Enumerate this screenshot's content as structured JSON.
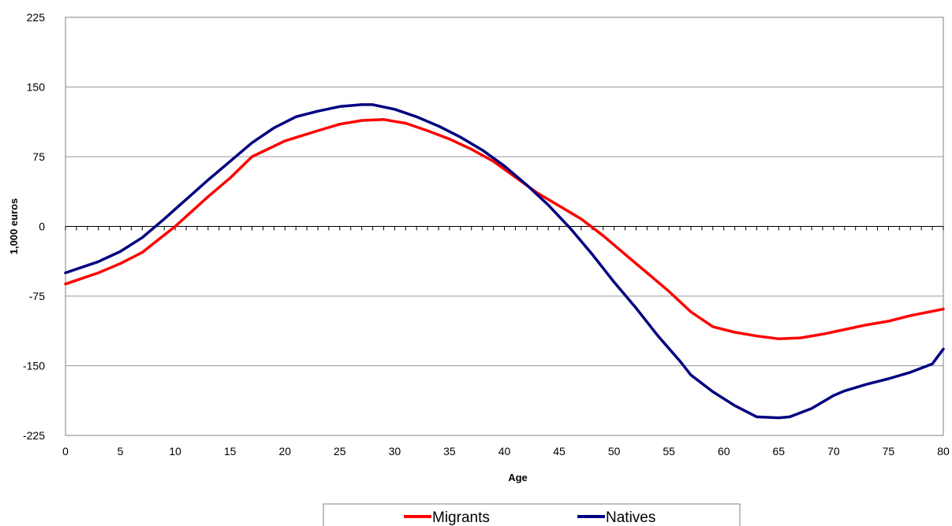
{
  "chart_data": {
    "type": "line",
    "title": "",
    "xlabel": "Age",
    "ylabel": "1,000 euros",
    "xlim": [
      0,
      80
    ],
    "ylim": [
      -225,
      225
    ],
    "xticks": [
      0,
      5,
      10,
      15,
      20,
      25,
      30,
      35,
      40,
      45,
      50,
      55,
      60,
      65,
      70,
      75,
      80
    ],
    "yticks": [
      -225,
      -150,
      -75,
      0,
      75,
      150,
      225
    ],
    "ytick_labels": [
      "-225",
      "-150",
      "-75",
      "0",
      "75",
      "150",
      "225"
    ],
    "grid": "horizontal",
    "legend_position": "bottom",
    "series": [
      {
        "name": "Migrants",
        "color": "#ff0000",
        "x": [
          0,
          3,
          5,
          7,
          10,
          13,
          15,
          17,
          20,
          23,
          25,
          27,
          29,
          31,
          33,
          35,
          37,
          39,
          41,
          43,
          45,
          47,
          49,
          51,
          53,
          55,
          57,
          59,
          61,
          63,
          65,
          67,
          69,
          71,
          73,
          75,
          77,
          80
        ],
        "y": [
          -62,
          -50,
          -40,
          -28,
          0,
          32,
          52,
          75,
          92,
          103,
          110,
          114,
          115,
          111,
          103,
          94,
          83,
          70,
          53,
          36,
          22,
          8,
          -10,
          -30,
          -50,
          -70,
          -92,
          -108,
          -114,
          -118,
          -121,
          -120,
          -116,
          -111,
          -106,
          -102,
          -96,
          -89
        ]
      },
      {
        "name": "Natives",
        "color": "#000080",
        "x": [
          0,
          3,
          5,
          7,
          9,
          11,
          13,
          15,
          17,
          19,
          21,
          23,
          25,
          27,
          28,
          30,
          32,
          34,
          36,
          38,
          40,
          42,
          44,
          46,
          48,
          50,
          52,
          54,
          56,
          57,
          59,
          61,
          63,
          65,
          66,
          68,
          70,
          71,
          73,
          75,
          77,
          79,
          80
        ],
        "y": [
          -50,
          -38,
          -27,
          -12,
          8,
          29,
          50,
          70,
          90,
          106,
          118,
          124,
          129,
          131,
          131,
          126,
          118,
          108,
          96,
          82,
          65,
          45,
          23,
          -2,
          -30,
          -60,
          -88,
          -118,
          -145,
          -160,
          -178,
          -193,
          -205,
          -206,
          -205,
          -196,
          -182,
          -177,
          -170,
          -164,
          -157,
          -148,
          -132
        ]
      }
    ]
  },
  "legend": {
    "items": [
      {
        "label": "Migrants",
        "color": "#ff0000"
      },
      {
        "label": "Natives",
        "color": "#000080"
      }
    ]
  }
}
